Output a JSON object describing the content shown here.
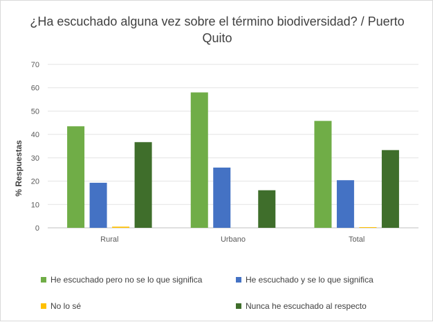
{
  "chart_data": {
    "type": "bar",
    "title": "¿Ha escuchado alguna vez sobre el término biodiversidad? / Puerto Quito",
    "xlabel": "",
    "ylabel": "% Respuestas",
    "ylim": [
      0,
      70
    ],
    "yticks": [
      0,
      10,
      20,
      30,
      40,
      50,
      60,
      70
    ],
    "grid": true,
    "legend_position": "bottom",
    "categories": [
      "Rural",
      "Urbano",
      "Total"
    ],
    "series": [
      {
        "name": "He escuchado pero no se lo que significa",
        "color": "#70ad47",
        "values": [
          43.5,
          58.0,
          45.8
        ]
      },
      {
        "name": "He escuchado y se lo que significa",
        "color": "#4472c4",
        "values": [
          19.3,
          25.8,
          20.4
        ]
      },
      {
        "name": "No lo sé",
        "color": "#ffc000",
        "values": [
          0.5,
          0,
          0.3
        ]
      },
      {
        "name": "Nunca he escuchado al respecto",
        "color": "#3f6e2b",
        "values": [
          36.7,
          16.1,
          33.3
        ]
      }
    ]
  }
}
